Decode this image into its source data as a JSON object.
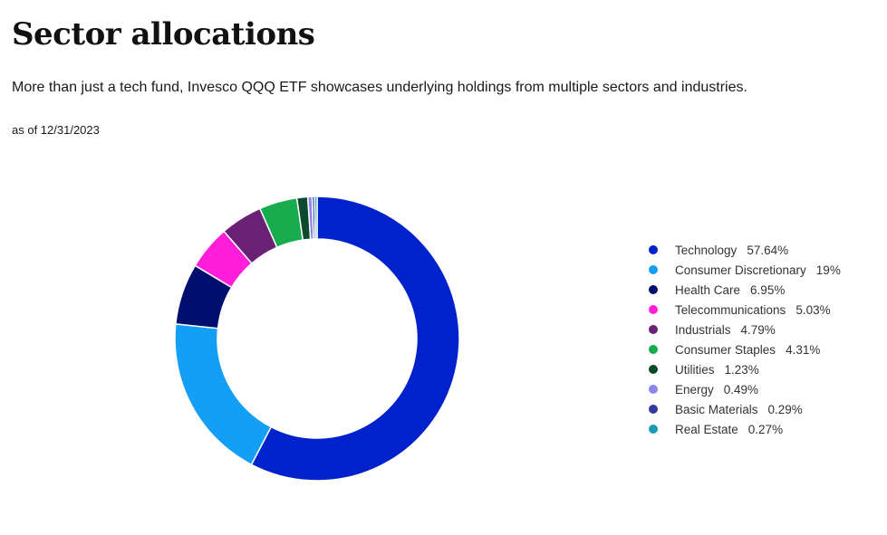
{
  "header": {
    "title": "Sector allocations",
    "subtitle": "More than just a tech fund, Invesco QQQ ETF showcases underlying holdings from multiple sectors and industries.",
    "as_of": "as of 12/31/2023"
  },
  "chart_data": {
    "type": "pie",
    "donut": true,
    "legend_position": "right",
    "series": [
      {
        "label": "Technology",
        "value": 57.64,
        "display": "57.64%",
        "color": "#0022CC"
      },
      {
        "label": "Consumer Discretionary",
        "value": 19,
        "display": "19%",
        "color": "#129FF5"
      },
      {
        "label": "Health Care",
        "value": 6.95,
        "display": "6.95%",
        "color": "#000F6E"
      },
      {
        "label": "Telecommunications",
        "value": 5.03,
        "display": "5.03%",
        "color": "#FF1FDB"
      },
      {
        "label": "Industrials",
        "value": 4.79,
        "display": "4.79%",
        "color": "#6A2175"
      },
      {
        "label": "Consumer Staples",
        "value": 4.31,
        "display": "4.31%",
        "color": "#17AC4E"
      },
      {
        "label": "Utilities",
        "value": 1.23,
        "display": "1.23%",
        "color": "#0B4A2C"
      },
      {
        "label": "Energy",
        "value": 0.49,
        "display": "0.49%",
        "color": "#8D84EC"
      },
      {
        "label": "Basic Materials",
        "value": 0.29,
        "display": "0.29%",
        "color": "#303C9A"
      },
      {
        "label": "Real Estate",
        "value": 0.27,
        "display": "0.27%",
        "color": "#1A9BB6"
      }
    ]
  }
}
